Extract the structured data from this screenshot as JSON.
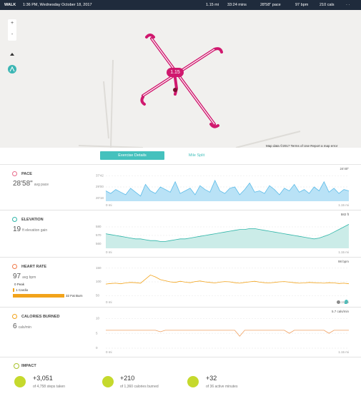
{
  "header": {
    "activity": "WALK",
    "datetime": "1:36 PM, Wednesday October 18, 2017",
    "stats": [
      "1.15 mi",
      "33:24 mins",
      "28'58\" pace",
      "97 bpm",
      "210 cals"
    ],
    "menu": "· ·"
  },
  "map": {
    "controls": [
      "+",
      "-"
    ],
    "pin_label": "1.15",
    "attribution": "Map data ©2017",
    "links": [
      "Terms of Use",
      "Report a map error"
    ]
  },
  "tabs": [
    "Exercise Details",
    "Mile Split"
  ],
  "sections": [
    {
      "title": "PACE",
      "value": "28'58\"",
      "unit": "avg pace",
      "peak_label": "24'40\"",
      "x_start": "0 mi",
      "x_end": "1.15 mi",
      "line_color": "#5bbbe8",
      "fill_color": "#b9e2f6",
      "ylim": [
        18,
        40
      ],
      "yticks": [
        {
          "value": 37.7,
          "label": "37'42"
        },
        {
          "value": 29,
          "label": "29'00"
        },
        {
          "value": 20.3,
          "label": "20'18"
        }
      ],
      "values": [
        26,
        24,
        27,
        25,
        23,
        28,
        25,
        22,
        31,
        26,
        24,
        29,
        27,
        25,
        33,
        24,
        26,
        28,
        23,
        30,
        27,
        25,
        34,
        26,
        24,
        28,
        29,
        23,
        27,
        32,
        25,
        26,
        24,
        30,
        27,
        23,
        28,
        26,
        31,
        25,
        27,
        24,
        29,
        26,
        33,
        25,
        28,
        24,
        27,
        26
      ]
    },
    {
      "title": "ELEVATION",
      "value": "19",
      "unit": "ft elevation gain",
      "peak_label": "582 ft",
      "x_start": "0 mi",
      "x_end": "1.15 mi",
      "line_color": "#2fb5a8",
      "fill_color": "#cbece8",
      "ylim": [
        555,
        590
      ],
      "yticks": [
        580,
        570,
        560
      ],
      "values": [
        572,
        571,
        570,
        569,
        568,
        567,
        566,
        566,
        565,
        564,
        564,
        563,
        563,
        564,
        565,
        566,
        566,
        567,
        568,
        569,
        570,
        571,
        572,
        573,
        574,
        575,
        576,
        577,
        577,
        578,
        578,
        577,
        576,
        575,
        574,
        573,
        572,
        571,
        570,
        569,
        568,
        567,
        566,
        567,
        569,
        571,
        574,
        577,
        580,
        583
      ]
    },
    {
      "title": "HEART RATE",
      "value": "97",
      "unit": "avg bpm",
      "peak_label": "98 bpm",
      "x_start": "0 mi",
      "x_end": "1.15 mi",
      "line_color": "#f2a31b",
      "ylim": [
        40,
        160
      ],
      "yticks": [
        150,
        100,
        50
      ],
      "zones": [
        {
          "minutes": 0,
          "name": "Peak"
        },
        {
          "minutes": 1,
          "name": "Cardio"
        },
        {
          "minutes": 32,
          "name": "Fat Burn"
        }
      ],
      "values": [
        92,
        94,
        95,
        93,
        96,
        98,
        97,
        95,
        110,
        125,
        118,
        108,
        104,
        100,
        98,
        102,
        99,
        97,
        101,
        103,
        100,
        98,
        96,
        99,
        101,
        100,
        97,
        95,
        98,
        100,
        102,
        99,
        97,
        96,
        98,
        100,
        101,
        99,
        97,
        95,
        96,
        98,
        97,
        96,
        95,
        97,
        96,
        94,
        95,
        93
      ]
    },
    {
      "title": "CALORIES BURNED",
      "value": "6",
      "unit": "cals/min",
      "peak_label": "5.7 cals/min",
      "x_start": "0 mi",
      "x_end": "1.15 mi",
      "line_color": "#f0a060",
      "ylim": [
        0,
        11
      ],
      "yticks": [
        10,
        5,
        0
      ],
      "values": [
        6,
        6,
        6,
        6,
        6,
        6,
        6,
        6,
        6,
        6,
        6,
        5.5,
        6,
        6,
        6,
        6,
        6,
        6,
        6,
        6,
        6,
        6,
        6,
        6,
        6,
        6,
        6,
        4,
        6,
        6,
        6,
        6,
        6,
        6,
        6,
        6,
        6,
        5,
        6,
        6,
        6,
        6,
        6,
        6,
        6,
        5,
        6,
        6,
        6,
        6
      ]
    }
  ],
  "impact": {
    "title": "IMPACT",
    "items": [
      {
        "value": "+3,051",
        "detail": "of 4,758 steps taken"
      },
      {
        "value": "+210",
        "detail": "of 1,360 calories burned"
      },
      {
        "value": "+32",
        "detail": "of 36 active minutes"
      }
    ]
  }
}
